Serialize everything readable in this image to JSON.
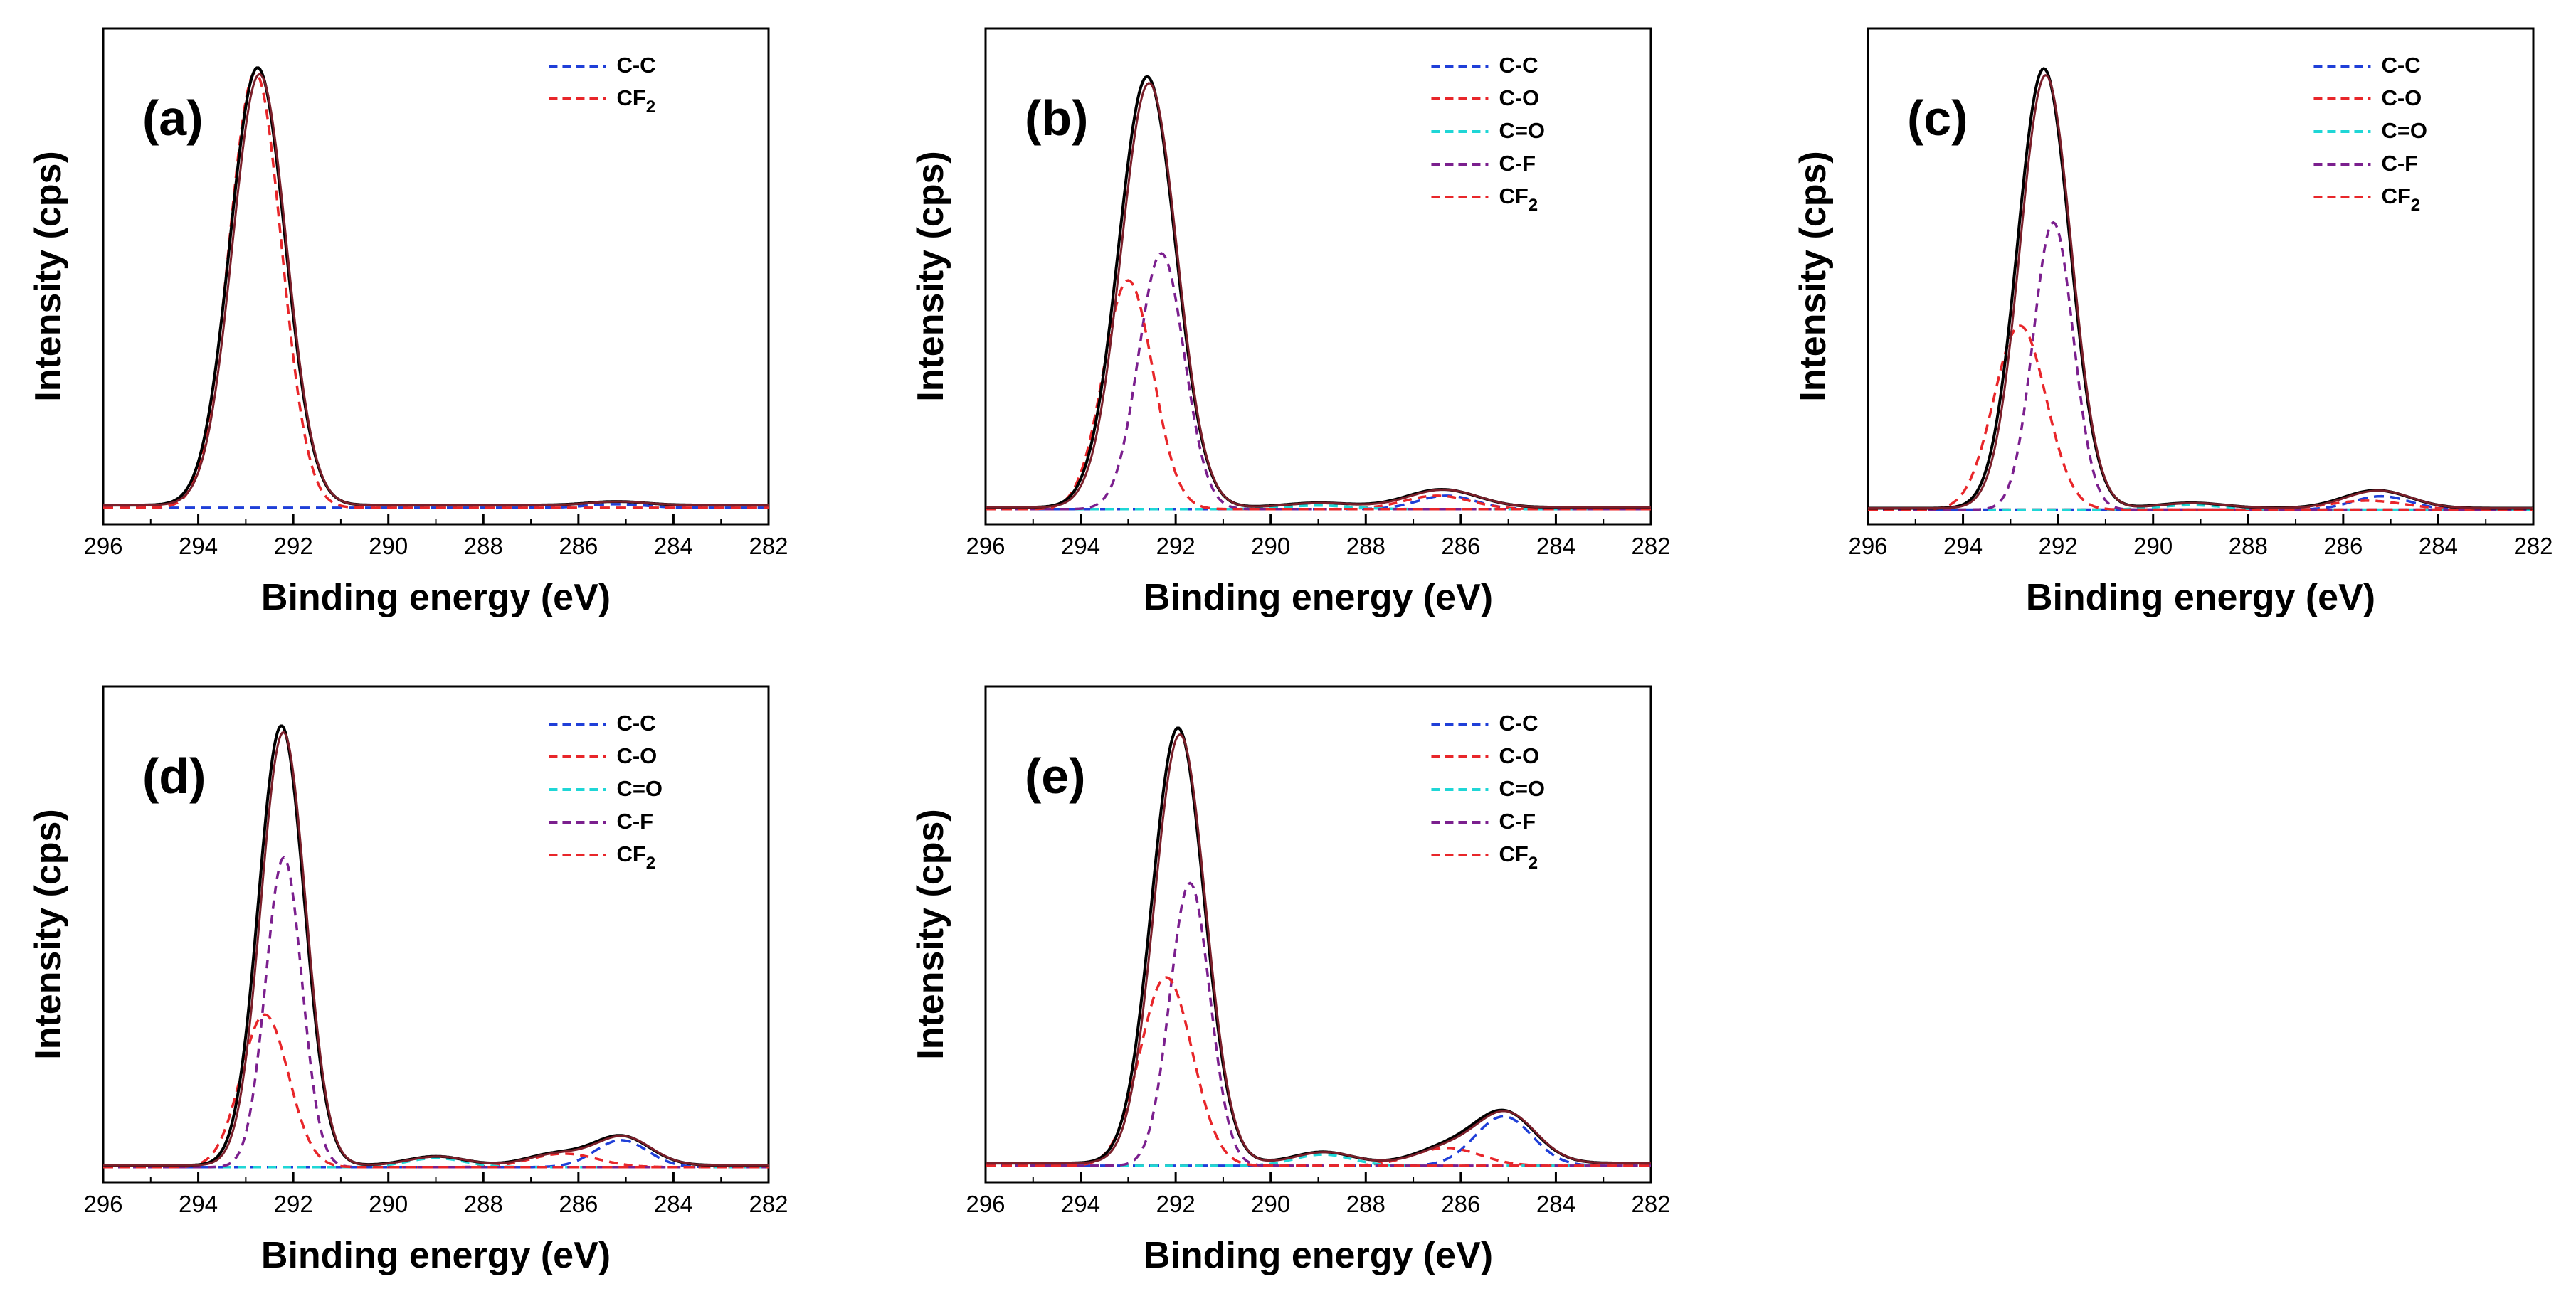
{
  "figure": {
    "xlabel": "Binding energy (eV)",
    "ylabel": "Intensity (cps)",
    "x_ticks": [
      296,
      294,
      292,
      290,
      288,
      286,
      284,
      282
    ],
    "xlim": [
      296,
      282
    ]
  },
  "colors": {
    "envelope": "#000000",
    "fit": "#7a1f2a",
    "C-C": "#1f3fd8",
    "C-O": "#e8262a",
    "C=O": "#1fd6d6",
    "C-F": "#7b1f8e",
    "CF2": "#e8262a"
  },
  "chart_data": [
    {
      "type": "line",
      "label": "(a)",
      "xlabel": "Binding energy (eV)",
      "ylabel": "Intensity (cps)",
      "xlim": [
        296,
        282
      ],
      "ylim": [
        0,
        100
      ],
      "legend": [
        "C-C",
        "CF2"
      ],
      "legend_display": [
        {
          "base": "C-C",
          "sub": ""
        },
        {
          "base": "CF",
          "sub": "2"
        }
      ],
      "baseline": 1.5,
      "components": [
        {
          "name": "C-C",
          "center": 285.2,
          "height": 0.8,
          "sigma": 0.6
        },
        {
          "name": "CF2",
          "center": 292.8,
          "height": 97,
          "sigma": 0.55
        }
      ],
      "envelope_peaks": [
        {
          "center": 292.75,
          "height": 97.5,
          "sigma": 0.58
        },
        {
          "center": 285.2,
          "height": 0.8,
          "sigma": 0.6
        }
      ]
    },
    {
      "type": "line",
      "label": "(b)",
      "xlabel": "Binding energy (eV)",
      "ylabel": "Intensity (cps)",
      "xlim": [
        296,
        282
      ],
      "ylim": [
        0,
        100
      ],
      "legend": [
        "C-C",
        "C-O",
        "C=O",
        "C-F",
        "CF2"
      ],
      "legend_display": [
        {
          "base": "C-C",
          "sub": ""
        },
        {
          "base": "C-O",
          "sub": ""
        },
        {
          "base": "C=O",
          "sub": ""
        },
        {
          "base": "C-F",
          "sub": ""
        },
        {
          "base": "CF",
          "sub": "2"
        }
      ],
      "baseline": 1.0,
      "components": [
        {
          "name": "C-C",
          "center": 286.3,
          "height": 3,
          "sigma": 0.6
        },
        {
          "name": "C-O",
          "center": 286.5,
          "height": 3,
          "sigma": 0.7
        },
        {
          "name": "C=O",
          "center": 289.0,
          "height": 0.8,
          "sigma": 0.7
        },
        {
          "name": "C-F",
          "center": 292.3,
          "height": 57,
          "sigma": 0.48
        },
        {
          "name": "CF2",
          "center": 293.0,
          "height": 51,
          "sigma": 0.52
        }
      ],
      "envelope_peaks": [
        {
          "center": 292.6,
          "height": 96,
          "sigma": 0.6
        },
        {
          "center": 286.4,
          "height": 4,
          "sigma": 0.75
        },
        {
          "center": 289.0,
          "height": 1,
          "sigma": 0.7
        }
      ]
    },
    {
      "type": "line",
      "label": "(c)",
      "xlabel": "Binding energy (eV)",
      "ylabel": "Intensity (cps)",
      "xlim": [
        296,
        282
      ],
      "ylim": [
        0,
        100
      ],
      "legend": [
        "C-C",
        "C-O",
        "C=O",
        "C-F",
        "CF2"
      ],
      "legend_display": [
        {
          "base": "C-C",
          "sub": ""
        },
        {
          "base": "C-O",
          "sub": ""
        },
        {
          "base": "C=O",
          "sub": ""
        },
        {
          "base": "C-F",
          "sub": ""
        },
        {
          "base": "CF",
          "sub": "2"
        }
      ],
      "baseline": 0.8,
      "components": [
        {
          "name": "C-C",
          "center": 285.2,
          "height": 3,
          "sigma": 0.6
        },
        {
          "name": "C-O",
          "center": 285.5,
          "height": 2,
          "sigma": 0.8
        },
        {
          "name": "C=O",
          "center": 289.2,
          "height": 1,
          "sigma": 0.7
        },
        {
          "name": "C-F",
          "center": 292.1,
          "height": 64,
          "sigma": 0.42
        },
        {
          "name": "CF2",
          "center": 292.8,
          "height": 41,
          "sigma": 0.55
        }
      ],
      "envelope_peaks": [
        {
          "center": 292.3,
          "height": 98,
          "sigma": 0.55
        },
        {
          "center": 285.3,
          "height": 4,
          "sigma": 0.7
        },
        {
          "center": 289.2,
          "height": 1.2,
          "sigma": 0.7
        }
      ]
    },
    {
      "type": "line",
      "label": "(d)",
      "xlabel": "Binding energy (eV)",
      "ylabel": "Intensity (cps)",
      "xlim": [
        296,
        282
      ],
      "ylim": [
        0,
        100
      ],
      "legend": [
        "C-C",
        "C-O",
        "C=O",
        "C-F",
        "CF2"
      ],
      "legend_display": [
        {
          "base": "C-C",
          "sub": ""
        },
        {
          "base": "C-O",
          "sub": ""
        },
        {
          "base": "C=O",
          "sub": ""
        },
        {
          "base": "C-F",
          "sub": ""
        },
        {
          "base": "CF",
          "sub": "2"
        }
      ],
      "baseline": 1.0,
      "components": [
        {
          "name": "C-C",
          "center": 285.1,
          "height": 6,
          "sigma": 0.55
        },
        {
          "name": "C-O",
          "center": 286.3,
          "height": 3,
          "sigma": 0.7
        },
        {
          "name": "C=O",
          "center": 289.0,
          "height": 2,
          "sigma": 0.6
        },
        {
          "name": "C-F",
          "center": 292.2,
          "height": 69,
          "sigma": 0.38
        },
        {
          "name": "CF2",
          "center": 292.6,
          "height": 34,
          "sigma": 0.5
        }
      ],
      "envelope_peaks": [
        {
          "center": 292.25,
          "height": 98,
          "sigma": 0.48
        },
        {
          "center": 285.1,
          "height": 6.5,
          "sigma": 0.6
        },
        {
          "center": 289.0,
          "height": 2,
          "sigma": 0.6
        },
        {
          "center": 286.5,
          "height": 2.5,
          "sigma": 0.6
        }
      ]
    },
    {
      "type": "line",
      "label": "(e)",
      "xlabel": "Binding energy (eV)",
      "ylabel": "Intensity (cps)",
      "xlim": [
        296,
        282
      ],
      "ylim": [
        0,
        100
      ],
      "legend": [
        "C-C",
        "C-O",
        "C=O",
        "C-F",
        "CF2"
      ],
      "legend_display": [
        {
          "base": "C-C",
          "sub": ""
        },
        {
          "base": "C-O",
          "sub": ""
        },
        {
          "base": "C=O",
          "sub": ""
        },
        {
          "base": "C-F",
          "sub": ""
        },
        {
          "base": "CF",
          "sub": "2"
        }
      ],
      "baseline": 1.5,
      "components": [
        {
          "name": "C-C",
          "center": 285.1,
          "height": 11,
          "sigma": 0.6
        },
        {
          "name": "C-O",
          "center": 286.3,
          "height": 4,
          "sigma": 0.7
        },
        {
          "name": "C=O",
          "center": 288.9,
          "height": 2.5,
          "sigma": 0.6
        },
        {
          "name": "C-F",
          "center": 291.7,
          "height": 63,
          "sigma": 0.42
        },
        {
          "name": "CF2",
          "center": 292.2,
          "height": 42,
          "sigma": 0.55
        }
      ],
      "envelope_peaks": [
        {
          "center": 291.95,
          "height": 97,
          "sigma": 0.55
        },
        {
          "center": 285.1,
          "height": 11.5,
          "sigma": 0.65
        },
        {
          "center": 288.9,
          "height": 2.5,
          "sigma": 0.6
        },
        {
          "center": 286.4,
          "height": 3,
          "sigma": 0.6
        }
      ]
    }
  ]
}
